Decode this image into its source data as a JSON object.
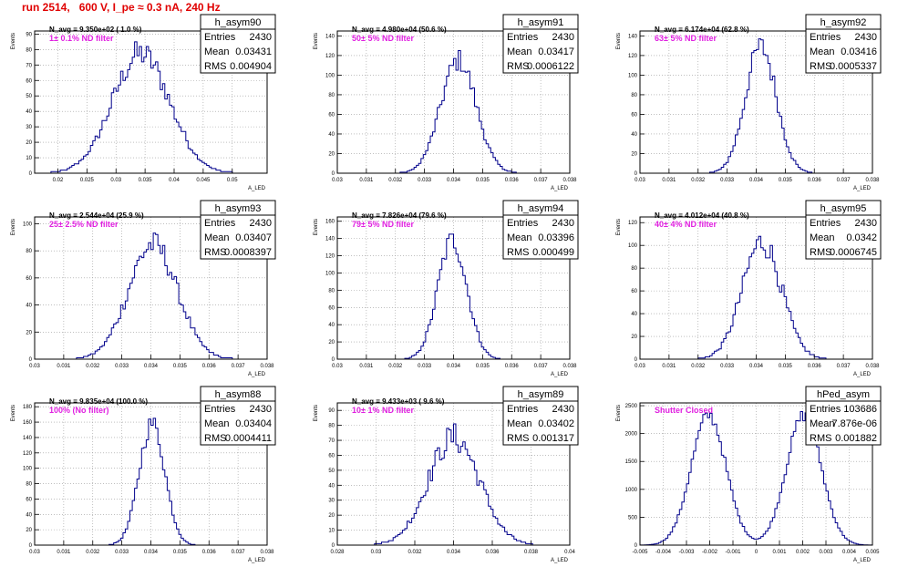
{
  "header": {
    "run_title": "run 2514,   600 V, I_pe ≈ 0.3 nA, 240 Hz"
  },
  "colors": {
    "title": "#e00000",
    "histogram": "#00008b",
    "annotation": "#e020e0"
  },
  "chart_data": [
    {
      "type": "histogram",
      "name": "h_asym90",
      "navg": "N_avg = 9.350e+02 ( 1.0 %)",
      "filter": "1± 0.1% ND filter",
      "stats": [
        [
          "Entries",
          "2430"
        ],
        [
          "Mean",
          "0.03431"
        ],
        [
          "RMS",
          "0.004904"
        ]
      ],
      "xlim": [
        0.016,
        0.056
      ],
      "xticks": [
        "0.02",
        "0.025",
        "0.03",
        "0.035",
        "0.04",
        "0.045",
        "0.05"
      ],
      "xtick_values": [
        0.02,
        0.025,
        0.03,
        0.035,
        0.04,
        0.045,
        0.05
      ],
      "ylim": [
        0,
        92
      ],
      "yticks": [
        0,
        10,
        20,
        30,
        40,
        50,
        60,
        70,
        80,
        90
      ],
      "mean": 0.03431,
      "rms": 0.004904,
      "peak": 84,
      "noise": 0.12,
      "xlabel": "A_LED",
      "ylabel": "Events"
    },
    {
      "type": "histogram",
      "name": "h_asym91",
      "navg": "N_avg = 4.980e+04 (50.6 %)",
      "filter": "50± 5% ND filter",
      "stats": [
        [
          "Entries",
          "2430"
        ],
        [
          "Mean",
          "0.03417"
        ],
        [
          "RMS",
          "0.0006122"
        ]
      ],
      "xlim": [
        0.03,
        0.038
      ],
      "xticks": [
        "0.03",
        "0.031",
        "0.032",
        "0.033",
        "0.034",
        "0.035",
        "0.036",
        "0.037",
        "0.038"
      ],
      "xtick_values": [
        0.03,
        0.031,
        0.032,
        0.033,
        0.034,
        0.035,
        0.036,
        0.037,
        0.038
      ],
      "ylim": [
        0,
        145
      ],
      "yticks": [
        0,
        20,
        40,
        60,
        80,
        100,
        120,
        140
      ],
      "mean": 0.03417,
      "rms": 0.0006122,
      "peak": 125,
      "noise": 0.1,
      "xlabel": "A_LED",
      "ylabel": "Events"
    },
    {
      "type": "histogram",
      "name": "h_asym92",
      "navg": "N_avg = 6.174e+04 (62.8 %)",
      "filter": "63± 5% ND filter",
      "stats": [
        [
          "Entries",
          "2430"
        ],
        [
          "Mean",
          "0.03416"
        ],
        [
          "RMS",
          "0.0005337"
        ]
      ],
      "xlim": [
        0.03,
        0.038
      ],
      "xticks": [
        "0.03",
        "0.031",
        "0.032",
        "0.033",
        "0.034",
        "0.035",
        "0.036",
        "0.037",
        "0.038"
      ],
      "xtick_values": [
        0.03,
        0.031,
        0.032,
        0.033,
        0.034,
        0.035,
        0.036,
        0.037,
        0.038
      ],
      "ylim": [
        0,
        145
      ],
      "yticks": [
        0,
        20,
        40,
        60,
        80,
        100,
        120,
        140
      ],
      "mean": 0.03416,
      "rms": 0.0005337,
      "peak": 140,
      "noise": 0.1,
      "xlabel": "A_LED",
      "ylabel": "Events"
    },
    {
      "type": "histogram",
      "name": "h_asym93",
      "navg": "N_avg = 2.544e+04 (25.9 %)",
      "filter": "25± 2.5% ND filter",
      "stats": [
        [
          "Entries",
          "2430"
        ],
        [
          "Mean",
          "0.03407"
        ],
        [
          "RMS",
          "0.0008397"
        ]
      ],
      "xlim": [
        0.03,
        0.038
      ],
      "xticks": [
        "0.03",
        "0.031",
        "0.032",
        "0.033",
        "0.034",
        "0.035",
        "0.036",
        "0.037",
        "0.038"
      ],
      "xtick_values": [
        0.03,
        0.031,
        0.032,
        0.033,
        0.034,
        0.035,
        0.036,
        0.037,
        0.038
      ],
      "ylim": [
        0,
        105
      ],
      "yticks": [
        0,
        20,
        40,
        60,
        80,
        100
      ],
      "mean": 0.03407,
      "rms": 0.0008397,
      "peak": 92,
      "noise": 0.12,
      "xlabel": "A_LED",
      "ylabel": "Events"
    },
    {
      "type": "histogram",
      "name": "h_asym94",
      "navg": "N_avg = 7.826e+04 (79.6 %)",
      "filter": "79± 5% ND filter",
      "stats": [
        [
          "Entries",
          "2430"
        ],
        [
          "Mean",
          "0.03396"
        ],
        [
          "RMS",
          "0.000499"
        ]
      ],
      "xlim": [
        0.03,
        0.038
      ],
      "xticks": [
        "0.03",
        "0.031",
        "0.032",
        "0.033",
        "0.034",
        "0.035",
        "0.036",
        "0.037",
        "0.038"
      ],
      "xtick_values": [
        0.03,
        0.031,
        0.032,
        0.033,
        0.034,
        0.035,
        0.036,
        0.037,
        0.038
      ],
      "ylim": [
        0,
        165
      ],
      "yticks": [
        0,
        20,
        40,
        60,
        80,
        100,
        120,
        140,
        160
      ],
      "mean": 0.03396,
      "rms": 0.000499,
      "peak": 150,
      "noise": 0.1,
      "xlabel": "A_LED",
      "ylabel": "Events"
    },
    {
      "type": "histogram",
      "name": "h_asym95",
      "navg": "N_avg = 4.012e+04 (40.8 %)",
      "filter": "40± 4% ND filter",
      "stats": [
        [
          "Entries",
          "2430"
        ],
        [
          "Mean",
          "0.0342"
        ],
        [
          "RMS",
          "0.0006745"
        ]
      ],
      "xlim": [
        0.03,
        0.038
      ],
      "xticks": [
        "0.03",
        "0.031",
        "0.032",
        "0.033",
        "0.034",
        "0.035",
        "0.036",
        "0.037",
        "0.038"
      ],
      "xtick_values": [
        0.03,
        0.031,
        0.032,
        0.033,
        0.034,
        0.035,
        0.036,
        0.037,
        0.038
      ],
      "ylim": [
        0,
        125
      ],
      "yticks": [
        0,
        20,
        40,
        60,
        80,
        100,
        120
      ],
      "mean": 0.0342,
      "rms": 0.0006745,
      "peak": 112,
      "noise": 0.12,
      "xlabel": "A_LED",
      "ylabel": "Events"
    },
    {
      "type": "histogram",
      "name": "h_asym88",
      "navg": "N_avg = 9.835e+04 (100.0 %)",
      "filter": "100% (No filter)",
      "stats": [
        [
          "Entries",
          "2430"
        ],
        [
          "Mean",
          "0.03404"
        ],
        [
          "RMS",
          "0.0004411"
        ]
      ],
      "xlim": [
        0.03,
        0.038
      ],
      "xticks": [
        "0.03",
        "0.031",
        "0.032",
        "0.033",
        "0.034",
        "0.035",
        "0.036",
        "0.037",
        "0.038"
      ],
      "xtick_values": [
        0.03,
        0.031,
        0.032,
        0.033,
        0.034,
        0.035,
        0.036,
        0.037,
        0.038
      ],
      "ylim": [
        0,
        185
      ],
      "yticks": [
        0,
        20,
        40,
        60,
        80,
        100,
        120,
        140,
        160,
        180
      ],
      "mean": 0.03404,
      "rms": 0.0004411,
      "peak": 172,
      "noise": 0.08,
      "xlabel": "A_LED",
      "ylabel": "Events"
    },
    {
      "type": "histogram",
      "name": "h_asym89",
      "navg": "N_avg = 9.433e+03 ( 9.6 %)",
      "filter": "10± 1% ND filter",
      "stats": [
        [
          "Entries",
          "2430"
        ],
        [
          "Mean",
          "0.03402"
        ],
        [
          "RMS",
          "0.001317"
        ]
      ],
      "xlim": [
        0.028,
        0.04
      ],
      "xticks": [
        "0.028",
        "0.03",
        "0.032",
        "0.034",
        "0.036",
        "0.038",
        "0.04"
      ],
      "xtick_values": [
        0.028,
        0.03,
        0.032,
        0.034,
        0.036,
        0.038,
        0.04
      ],
      "ylim": [
        0,
        95
      ],
      "yticks": [
        0,
        10,
        20,
        30,
        40,
        50,
        60,
        70,
        80,
        90
      ],
      "mean": 0.03402,
      "rms": 0.001317,
      "peak": 78,
      "noise": 0.14,
      "xlabel": "A_LED",
      "ylabel": "Events"
    },
    {
      "type": "histogram",
      "name": "hPed_asym",
      "navg": "",
      "filter": "Shutter Closed",
      "stats": [
        [
          "Entries",
          "103686"
        ],
        [
          "Mean",
          "7.876e-06"
        ],
        [
          "RMS",
          "0.001882"
        ]
      ],
      "xlim": [
        -0.005,
        0.005
      ],
      "xticks": [
        "-0.005",
        "-0.004",
        "-0.003",
        "-0.002",
        "-0.001",
        "0",
        "0.001",
        "0.002",
        "0.003",
        "0.004",
        "0.005"
      ],
      "xtick_values": [
        -0.005,
        -0.004,
        -0.003,
        -0.002,
        -0.001,
        0,
        0.001,
        0.002,
        0.003,
        0.004,
        0.005
      ],
      "ylim": [
        0,
        2550
      ],
      "yticks": [
        0,
        500,
        1000,
        1500,
        2000,
        2500
      ],
      "mean": 0.0,
      "rms": 0.001882,
      "peak": 2400,
      "noise": 0.05,
      "bimodal": true,
      "xlabel": "A_LED",
      "ylabel": "Events"
    }
  ]
}
